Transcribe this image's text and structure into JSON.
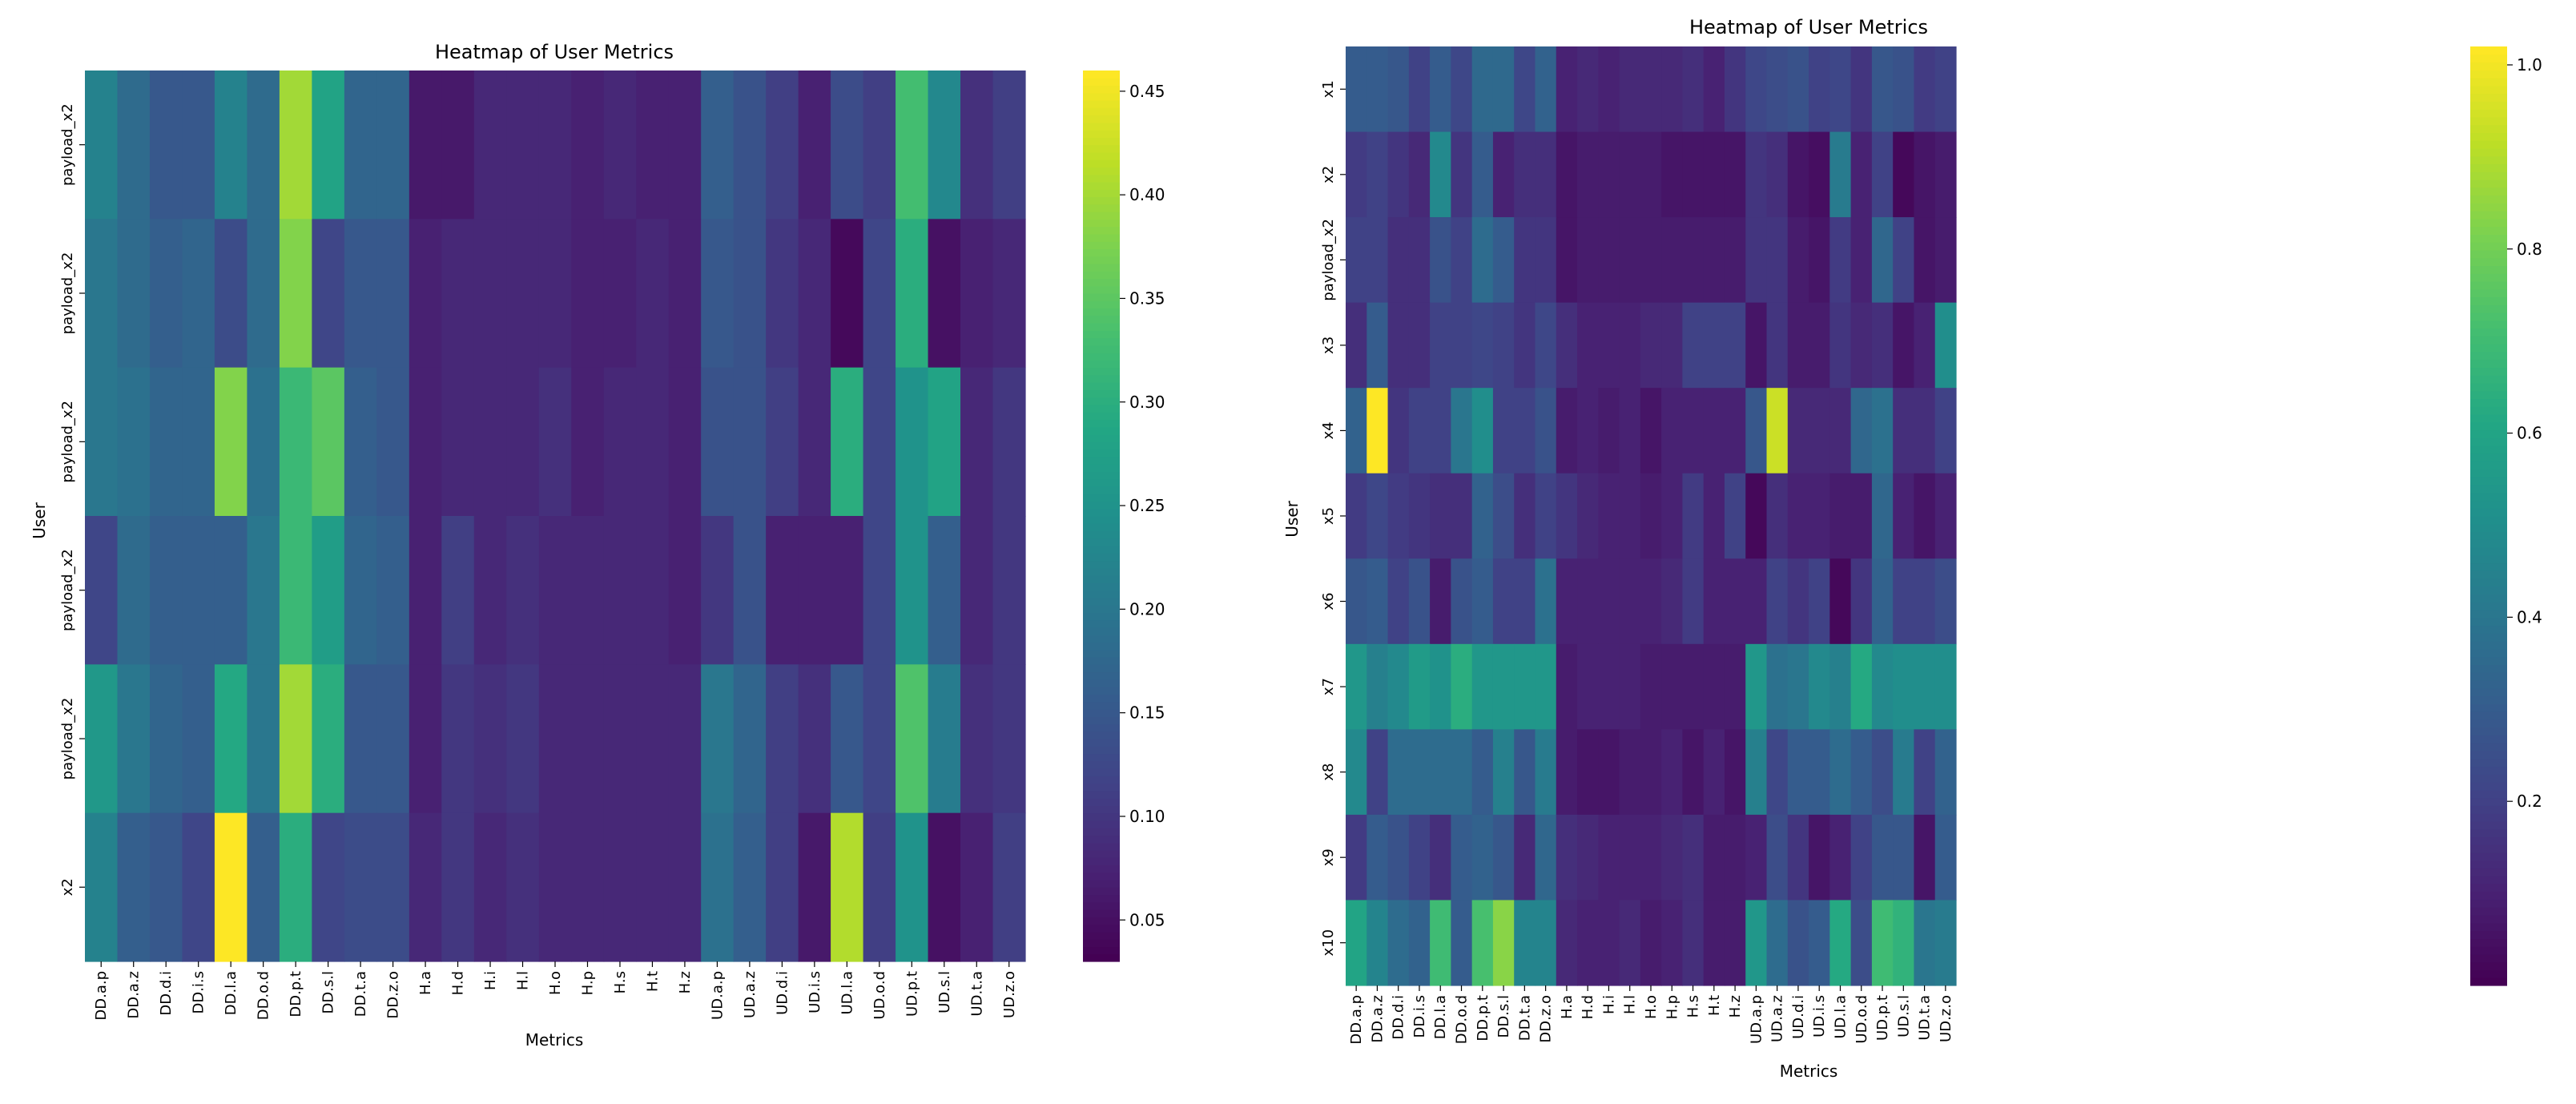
{
  "charts": [
    {
      "title": "Heatmap of User Metrics",
      "xlabel": "Metrics",
      "ylabel": "User",
      "cbar_ticks": [
        "0.05",
        "0.10",
        "0.15",
        "0.20",
        "0.25",
        "0.30",
        "0.35",
        "0.40",
        "0.45"
      ]
    },
    {
      "title": "Heatmap of User Metrics",
      "xlabel": "Metrics",
      "ylabel": "User",
      "cbar_ticks": [
        "0.2",
        "0.4",
        "0.6",
        "0.8",
        "1.0"
      ]
    }
  ],
  "chart_data": [
    {
      "type": "heatmap",
      "title": "Heatmap of User Metrics",
      "xlabel": "Metrics",
      "ylabel": "User",
      "colormap": "viridis",
      "vmin": 0.03,
      "vmax": 0.46,
      "x": [
        "DD.a.p",
        "DD.a.z",
        "DD.d.i",
        "DD.i.s",
        "DD.l.a",
        "DD.o.d",
        "DD.p.t",
        "DD.s.l",
        "DD.t.a",
        "DD.z.o",
        "H.a",
        "H.d",
        "H.i",
        "H.l",
        "H.o",
        "H.p",
        "H.s",
        "H.t",
        "H.z",
        "UD.a.p",
        "UD.a.z",
        "UD.d.i",
        "UD.i.s",
        "UD.l.a",
        "UD.o.d",
        "UD.p.t",
        "UD.s.l",
        "UD.t.a",
        "UD.z.o"
      ],
      "y": [
        "payload_x2",
        "payload_x2",
        "payload_x2",
        "payload_x2",
        "payload_x2",
        "x2"
      ],
      "values": [
        [
          0.22,
          0.18,
          0.15,
          0.15,
          0.22,
          0.18,
          0.4,
          0.28,
          0.17,
          0.17,
          0.06,
          0.06,
          0.08,
          0.08,
          0.08,
          0.07,
          0.08,
          0.07,
          0.07,
          0.16,
          0.14,
          0.11,
          0.07,
          0.13,
          0.11,
          0.33,
          0.23,
          0.09,
          0.11
        ],
        [
          0.2,
          0.18,
          0.16,
          0.17,
          0.13,
          0.18,
          0.38,
          0.12,
          0.15,
          0.15,
          0.07,
          0.08,
          0.08,
          0.08,
          0.08,
          0.07,
          0.07,
          0.08,
          0.07,
          0.15,
          0.14,
          0.1,
          0.08,
          0.04,
          0.12,
          0.3,
          0.05,
          0.07,
          0.08
        ],
        [
          0.2,
          0.19,
          0.17,
          0.17,
          0.38,
          0.19,
          0.32,
          0.35,
          0.16,
          0.15,
          0.07,
          0.08,
          0.08,
          0.08,
          0.09,
          0.07,
          0.08,
          0.08,
          0.07,
          0.14,
          0.14,
          0.11,
          0.08,
          0.3,
          0.12,
          0.25,
          0.28,
          0.08,
          0.1
        ],
        [
          0.12,
          0.18,
          0.16,
          0.16,
          0.16,
          0.2,
          0.32,
          0.27,
          0.17,
          0.16,
          0.07,
          0.11,
          0.08,
          0.09,
          0.08,
          0.08,
          0.08,
          0.08,
          0.07,
          0.1,
          0.14,
          0.07,
          0.07,
          0.07,
          0.12,
          0.25,
          0.16,
          0.08,
          0.1
        ],
        [
          0.26,
          0.2,
          0.17,
          0.16,
          0.29,
          0.2,
          0.4,
          0.3,
          0.15,
          0.15,
          0.07,
          0.1,
          0.09,
          0.1,
          0.08,
          0.08,
          0.08,
          0.08,
          0.08,
          0.2,
          0.17,
          0.11,
          0.09,
          0.15,
          0.12,
          0.34,
          0.21,
          0.09,
          0.1
        ],
        [
          0.22,
          0.16,
          0.15,
          0.12,
          0.46,
          0.16,
          0.3,
          0.12,
          0.13,
          0.13,
          0.08,
          0.1,
          0.08,
          0.09,
          0.08,
          0.08,
          0.08,
          0.08,
          0.08,
          0.19,
          0.16,
          0.11,
          0.06,
          0.41,
          0.11,
          0.25,
          0.05,
          0.07,
          0.11
        ]
      ]
    },
    {
      "type": "heatmap",
      "title": "Heatmap of User Metrics",
      "xlabel": "Metrics",
      "ylabel": "User",
      "colormap": "viridis",
      "vmin": 0.0,
      "vmax": 1.02,
      "x": [
        "DD.a.p",
        "DD.a.z",
        "DD.d.i",
        "DD.i.s",
        "DD.l.a",
        "DD.o.d",
        "DD.p.t",
        "DD.s.l",
        "DD.t.a",
        "DD.z.o",
        "H.a",
        "H.d",
        "H.i",
        "H.l",
        "H.o",
        "H.p",
        "H.s",
        "H.t",
        "H.z",
        "UD.a.p",
        "UD.a.z",
        "UD.d.i",
        "UD.i.s",
        "UD.l.a",
        "UD.o.d",
        "UD.p.t",
        "UD.s.l",
        "UD.t.a",
        "UD.z.o"
      ],
      "y": [
        "x1",
        "x2",
        "payload_x2",
        "x3",
        "x4",
        "x5",
        "x6",
        "x7",
        "x8",
        "x9",
        "x10"
      ],
      "values": [
        [
          0.3,
          0.3,
          0.28,
          0.2,
          0.3,
          0.22,
          0.35,
          0.35,
          0.22,
          0.32,
          0.1,
          0.12,
          0.1,
          0.12,
          0.12,
          0.12,
          0.14,
          0.1,
          0.16,
          0.22,
          0.24,
          0.26,
          0.2,
          0.22,
          0.16,
          0.28,
          0.26,
          0.18,
          0.2
        ],
        [
          0.18,
          0.2,
          0.16,
          0.12,
          0.48,
          0.16,
          0.3,
          0.1,
          0.14,
          0.14,
          0.06,
          0.08,
          0.08,
          0.08,
          0.08,
          0.06,
          0.06,
          0.06,
          0.06,
          0.16,
          0.14,
          0.06,
          0.04,
          0.42,
          0.1,
          0.2,
          0.02,
          0.06,
          0.08
        ],
        [
          0.2,
          0.2,
          0.14,
          0.14,
          0.26,
          0.2,
          0.36,
          0.3,
          0.16,
          0.16,
          0.06,
          0.08,
          0.08,
          0.08,
          0.08,
          0.08,
          0.08,
          0.08,
          0.08,
          0.16,
          0.16,
          0.08,
          0.06,
          0.18,
          0.1,
          0.34,
          0.2,
          0.06,
          0.08
        ],
        [
          0.14,
          0.3,
          0.14,
          0.14,
          0.2,
          0.2,
          0.22,
          0.2,
          0.16,
          0.22,
          0.14,
          0.1,
          0.1,
          0.1,
          0.12,
          0.12,
          0.2,
          0.2,
          0.2,
          0.06,
          0.16,
          0.08,
          0.08,
          0.16,
          0.12,
          0.14,
          0.06,
          0.1,
          0.5
        ],
        [
          0.32,
          1.02,
          0.16,
          0.2,
          0.2,
          0.4,
          0.5,
          0.2,
          0.2,
          0.26,
          0.08,
          0.1,
          0.08,
          0.1,
          0.06,
          0.1,
          0.1,
          0.1,
          0.1,
          0.28,
          0.94,
          0.12,
          0.12,
          0.12,
          0.34,
          0.38,
          0.14,
          0.14,
          0.2
        ],
        [
          0.18,
          0.22,
          0.18,
          0.16,
          0.14,
          0.14,
          0.32,
          0.24,
          0.14,
          0.2,
          0.16,
          0.12,
          0.1,
          0.1,
          0.08,
          0.1,
          0.18,
          0.1,
          0.2,
          0.02,
          0.14,
          0.1,
          0.1,
          0.08,
          0.08,
          0.34,
          0.1,
          0.06,
          0.1
        ],
        [
          0.28,
          0.3,
          0.2,
          0.26,
          0.08,
          0.26,
          0.3,
          0.2,
          0.2,
          0.38,
          0.1,
          0.1,
          0.1,
          0.1,
          0.1,
          0.12,
          0.18,
          0.1,
          0.1,
          0.1,
          0.2,
          0.16,
          0.2,
          0.02,
          0.16,
          0.32,
          0.2,
          0.2,
          0.24
        ],
        [
          0.54,
          0.44,
          0.48,
          0.56,
          0.52,
          0.64,
          0.54,
          0.54,
          0.54,
          0.54,
          0.08,
          0.1,
          0.1,
          0.1,
          0.08,
          0.08,
          0.08,
          0.08,
          0.08,
          0.54,
          0.38,
          0.4,
          0.48,
          0.44,
          0.62,
          0.48,
          0.5,
          0.5,
          0.5
        ],
        [
          0.48,
          0.2,
          0.36,
          0.36,
          0.36,
          0.36,
          0.3,
          0.44,
          0.28,
          0.42,
          0.08,
          0.06,
          0.06,
          0.08,
          0.08,
          0.1,
          0.06,
          0.1,
          0.06,
          0.44,
          0.22,
          0.3,
          0.3,
          0.36,
          0.3,
          0.24,
          0.42,
          0.2,
          0.32
        ],
        [
          0.18,
          0.3,
          0.26,
          0.2,
          0.14,
          0.3,
          0.32,
          0.28,
          0.12,
          0.34,
          0.14,
          0.12,
          0.1,
          0.1,
          0.1,
          0.12,
          0.14,
          0.08,
          0.08,
          0.1,
          0.24,
          0.16,
          0.06,
          0.1,
          0.2,
          0.28,
          0.28,
          0.06,
          0.3
        ],
        [
          0.6,
          0.46,
          0.36,
          0.32,
          0.7,
          0.3,
          0.72,
          0.84,
          0.46,
          0.46,
          0.12,
          0.1,
          0.1,
          0.12,
          0.08,
          0.1,
          0.14,
          0.08,
          0.08,
          0.54,
          0.36,
          0.26,
          0.3,
          0.62,
          0.24,
          0.7,
          0.66,
          0.4,
          0.42
        ]
      ]
    }
  ]
}
